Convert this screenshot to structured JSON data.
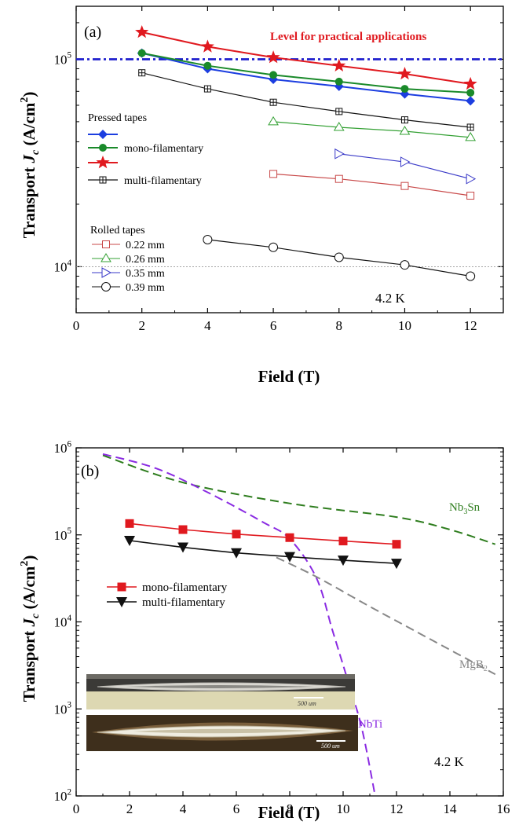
{
  "chart_data": [
    {
      "type": "line",
      "panel_label": "(a)",
      "xlabel": "Field (T)",
      "ylabel_main": "Transport ",
      "ylabel_J": "J",
      "ylabel_sub": "c",
      "ylabel_unit": " (A/cm",
      "ylabel_sup": "2",
      "ylabel_close": ")",
      "xlim": [
        0,
        13
      ],
      "ylim": [
        6000,
        180000
      ],
      "yscale": "log",
      "x_ticks": [
        0,
        2,
        4,
        6,
        8,
        10,
        12
      ],
      "y_ticks": [
        {
          "value": 10000,
          "mantissa": "10",
          "exp": "4"
        },
        {
          "value": 100000,
          "mantissa": "10",
          "exp": "5"
        }
      ],
      "reference_line": {
        "y": 100000,
        "label": "Level for practical applications",
        "color": "#1a1acc"
      },
      "thin_line": {
        "y": 10000
      },
      "annotation": "4.2 K",
      "legend_pressed_title": "Pressed tapes",
      "legend_rolled_title": "Rolled tapes",
      "series": [
        {
          "legend": "",
          "color": "#e0191f",
          "marker": "star",
          "x": [
            2,
            4,
            6,
            8,
            10,
            12
          ],
          "values": [
            135000,
            115000,
            102000,
            93000,
            85000,
            76000
          ]
        },
        {
          "legend": "",
          "color": "#1c3ee0",
          "marker": "diamond",
          "x": [
            2,
            4,
            6,
            8,
            10,
            12
          ],
          "values": [
            107000,
            90000,
            80000,
            74000,
            68000,
            63000
          ]
        },
        {
          "legend": "mono-filamentary",
          "color": "#1a8a2a",
          "marker": "circle",
          "x": [
            2,
            4,
            6,
            8,
            10,
            12
          ],
          "values": [
            107000,
            93000,
            84000,
            78000,
            72000,
            69000
          ]
        },
        {
          "legend": "multi-filamentary",
          "color": "#111111",
          "marker": "square-plus",
          "x": [
            2,
            4,
            6,
            8,
            10,
            12
          ],
          "values": [
            86000,
            72000,
            62000,
            56000,
            51000,
            47000
          ]
        },
        {
          "legend": "0.22 mm",
          "color": "#c84848",
          "marker": "open-square",
          "x": [
            6,
            8,
            10,
            12
          ],
          "values": [
            28000,
            26500,
            24500,
            22000
          ]
        },
        {
          "legend": "0.26 mm",
          "color": "#33a033",
          "marker": "open-triangle-up",
          "x": [
            6,
            8,
            10,
            12
          ],
          "values": [
            50000,
            47000,
            45000,
            42000
          ]
        },
        {
          "legend": "0.35 mm",
          "color": "#3a3ac8",
          "marker": "open-triangle-right",
          "x": [
            8,
            10,
            12
          ],
          "values": [
            35000,
            32000,
            26500
          ]
        },
        {
          "legend": "0.39 mm",
          "color": "#111111",
          "marker": "open-circle",
          "x": [
            4,
            6,
            8,
            10,
            12
          ],
          "values": [
            13500,
            12400,
            11100,
            10200,
            9000
          ]
        }
      ]
    },
    {
      "type": "line",
      "panel_label": "(b)",
      "xlabel": "Field (T)",
      "xlim": [
        0,
        16
      ],
      "ylim": [
        100,
        1000000
      ],
      "yscale": "log",
      "x_ticks": [
        0,
        2,
        4,
        6,
        8,
        10,
        12,
        14,
        16
      ],
      "y_ticks": [
        {
          "value": 100,
          "mantissa": "10",
          "exp": "2"
        },
        {
          "value": 1000,
          "mantissa": "10",
          "exp": "3"
        },
        {
          "value": 10000,
          "mantissa": "10",
          "exp": "4"
        },
        {
          "value": 100000,
          "mantissa": "10",
          "exp": "5"
        },
        {
          "value": 1000000,
          "mantissa": "10",
          "exp": "6"
        }
      ],
      "annotation": "4.2 K",
      "curve_labels": {
        "nb3sn_base": "Nb",
        "nb3sn_sub": "3",
        "nb3sn_tail": "Sn",
        "mgb2_base": "MgB",
        "mgb2_sub": "2",
        "nbti": "NbTi"
      },
      "insets": [
        {
          "scale_text": "500 um"
        },
        {
          "scale_text": "500 um"
        }
      ],
      "series": [
        {
          "legend": "mono-filamentary",
          "color": "#e0191f",
          "marker": "filled-square",
          "x": [
            2,
            4,
            6,
            8,
            10,
            12
          ],
          "values": [
            135000,
            115000,
            102000,
            93000,
            85000,
            78000
          ]
        },
        {
          "legend": "multi-filamentary",
          "color": "#111111",
          "marker": "filled-triangle-down",
          "x": [
            2,
            4,
            6,
            8,
            10,
            12
          ],
          "values": [
            86000,
            72000,
            62000,
            56000,
            51000,
            47000
          ]
        }
      ],
      "curves": [
        {
          "name": "Nb3Sn",
          "color": "#2e7d1e",
          "x": [
            1.0,
            4,
            8,
            12,
            14,
            15.7
          ],
          "values": [
            820000,
            400000,
            230000,
            160000,
            115000,
            78000
          ]
        },
        {
          "name": "NbTi",
          "color": "#8a2be2",
          "x": [
            1.0,
            3,
            5,
            7,
            8,
            9,
            9.6,
            10.2,
            10.7,
            11.2
          ],
          "values": [
            850000,
            580000,
            300000,
            140000,
            90000,
            32000,
            8000,
            2000,
            600,
            100
          ]
        },
        {
          "name": "MgB2",
          "color": "#888888",
          "x": [
            7.5,
            9,
            11,
            13,
            15.7
          ],
          "values": [
            55000,
            33000,
            15000,
            7000,
            2500
          ]
        }
      ]
    }
  ]
}
